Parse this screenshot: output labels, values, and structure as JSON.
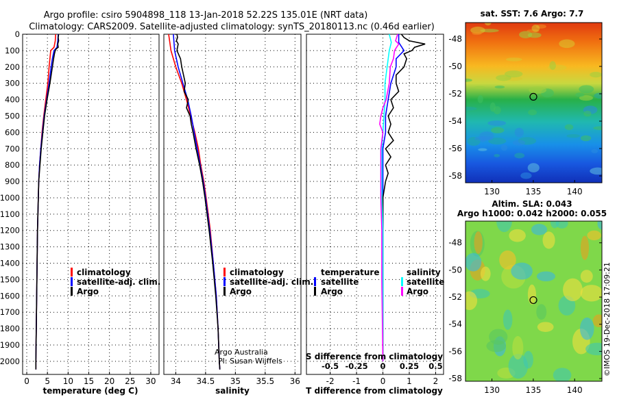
{
  "title_line1": "Argo profile: csiro 5904898_118 13-Jan-2018 52.22S 135.01E (NRT data)",
  "title_line2": "Climatology: CARS2009. Satellite-adjusted climatology: synTS_20180113.nc (0.46d earlier)",
  "colors": {
    "climatology": "#ff0000",
    "satellite": "#0000ff",
    "argo": "#000000",
    "sat_salinity": "#00ffff",
    "argo_salinity": "#ff00ff"
  },
  "chart_data": [
    {
      "type": "line",
      "name": "temperature-profile",
      "xlabel": "temperature (deg C)",
      "xlim": [
        -1,
        32
      ],
      "xticks": [
        0,
        5,
        10,
        15,
        20,
        25,
        30
      ],
      "ylim": [
        0,
        2080
      ],
      "yticks": [
        0,
        100,
        200,
        300,
        400,
        500,
        600,
        700,
        800,
        900,
        1000,
        1100,
        1200,
        1300,
        1400,
        1500,
        1600,
        1700,
        1800,
        1900,
        2000
      ],
      "legend": [
        "climatology",
        "satellite-adj. clim.",
        "Argo"
      ],
      "series": [
        {
          "name": "climatology",
          "color": "#ff0000",
          "depth": [
            0,
            40,
            80,
            100,
            150,
            200,
            300,
            400,
            500,
            600,
            700,
            800,
            900,
            1000,
            1200,
            1400,
            1600,
            1800,
            2000,
            2050
          ],
          "values": [
            7.0,
            6.9,
            6.6,
            5.8,
            5.6,
            5.4,
            5.1,
            4.6,
            4.1,
            3.7,
            3.4,
            3.1,
            2.9,
            2.8,
            2.6,
            2.5,
            2.4,
            2.3,
            2.2,
            2.2
          ]
        },
        {
          "name": "satellite-adj. clim.",
          "color": "#0000ff",
          "depth": [
            0,
            40,
            80,
            100,
            150,
            200,
            300,
            400,
            500,
            600,
            700,
            800,
            900,
            1000,
            1200,
            1400,
            1600,
            1800,
            2000,
            2050
          ],
          "values": [
            7.6,
            7.5,
            7.3,
            6.6,
            6.2,
            5.9,
            5.4,
            4.8,
            4.2,
            3.8,
            3.4,
            3.1,
            2.9,
            2.8,
            2.6,
            2.5,
            2.4,
            2.3,
            2.2,
            2.2
          ]
        },
        {
          "name": "Argo",
          "color": "#000000",
          "depth": [
            0,
            20,
            40,
            60,
            80,
            90,
            100,
            120,
            150,
            200,
            250,
            300,
            400,
            500,
            600,
            700,
            800,
            900,
            1000,
            1200,
            1400,
            1600,
            1800,
            2000,
            2050
          ],
          "values": [
            7.7,
            7.6,
            7.7,
            7.5,
            7.6,
            7.1,
            6.9,
            6.7,
            6.5,
            6.2,
            5.9,
            5.6,
            4.9,
            4.3,
            3.9,
            3.5,
            3.2,
            2.9,
            2.8,
            2.6,
            2.5,
            2.4,
            2.3,
            2.2,
            2.2
          ]
        }
      ]
    },
    {
      "type": "line",
      "name": "salinity-profile",
      "xlabel": "salinity",
      "xlim": [
        33.8,
        36.1
      ],
      "xticks": [
        34,
        34.5,
        35,
        35.5,
        36
      ],
      "xticklabels": [
        "34",
        "34.5",
        "35",
        "35.5",
        "36"
      ],
      "ylim": [
        0,
        2080
      ],
      "legend": [
        "climatology",
        "satellite-adj. clim.",
        "Argo"
      ],
      "series": [
        {
          "name": "climatology",
          "color": "#ff0000",
          "depth": [
            0,
            50,
            100,
            200,
            300,
            400,
            500,
            600,
            700,
            800,
            900,
            1000,
            1200,
            1400,
            1600,
            1800,
            2000,
            2050
          ],
          "values": [
            33.88,
            33.9,
            33.92,
            34.0,
            34.1,
            34.18,
            34.25,
            34.32,
            34.38,
            34.42,
            34.47,
            34.51,
            34.58,
            34.63,
            34.68,
            34.71,
            34.73,
            34.74
          ]
        },
        {
          "name": "satellite-adj. clim.",
          "color": "#0000ff",
          "depth": [
            0,
            50,
            100,
            200,
            300,
            400,
            500,
            600,
            700,
            800,
            900,
            1000,
            1200,
            1400,
            1600,
            1800,
            2000,
            2050
          ],
          "values": [
            33.96,
            33.97,
            33.98,
            34.04,
            34.12,
            34.2,
            34.26,
            34.31,
            34.36,
            34.41,
            34.46,
            34.5,
            34.57,
            34.63,
            34.68,
            34.71,
            34.73,
            34.74
          ]
        },
        {
          "name": "Argo",
          "color": "#000000",
          "depth": [
            0,
            20,
            40,
            60,
            80,
            100,
            150,
            200,
            250,
            300,
            350,
            400,
            450,
            500,
            550,
            600,
            700,
            800,
            900,
            1000,
            1200,
            1400,
            1600,
            1800,
            2000,
            2050
          ],
          "values": [
            34.02,
            34.03,
            34.01,
            34.04,
            34.03,
            34.02,
            34.08,
            34.1,
            34.13,
            34.16,
            34.14,
            34.21,
            34.18,
            34.24,
            34.26,
            34.29,
            34.34,
            34.4,
            34.45,
            34.49,
            34.56,
            34.62,
            34.67,
            34.71,
            34.73,
            34.74
          ]
        }
      ],
      "annotation": [
        "Argo Australia",
        "PI: Susan Wijffels"
      ]
    },
    {
      "type": "line",
      "name": "difference-profile",
      "xlabel": "T difference from climatology",
      "xlabel2": "S difference from climatology",
      "xlim": [
        -2.9,
        2.3
      ],
      "xticks": [
        -2,
        -1,
        0,
        1,
        2
      ],
      "xticks2": [
        -0.5,
        -0.25,
        0,
        0.25,
        0.5
      ],
      "xticklabels2": [
        "-0.5",
        "-0.25",
        "0",
        "0.25",
        "0.5"
      ],
      "ylim": [
        0,
        2080
      ],
      "legend_temperature_title": "temperature",
      "legend_salinity_title": "salinity",
      "legend_temperature": [
        "satellite",
        "Argo"
      ],
      "legend_salinity": [
        "satellite",
        "Argo"
      ],
      "series": [
        {
          "name": "T satellite",
          "color": "#0000ff",
          "depth": [
            0,
            50,
            100,
            150,
            200,
            300,
            400,
            500,
            600,
            700,
            800,
            900,
            1000,
            1200,
            1500,
            2000
          ],
          "values": [
            0.6,
            0.6,
            0.8,
            0.5,
            0.5,
            0.3,
            0.2,
            0.1,
            0.1,
            0.0,
            0.0,
            0.0,
            0.0,
            0.0,
            0.0,
            0.0
          ]
        },
        {
          "name": "T Argo",
          "color": "#000000",
          "depth": [
            0,
            20,
            40,
            60,
            80,
            100,
            120,
            150,
            200,
            250,
            300,
            350,
            400,
            450,
            500,
            550,
            600,
            650,
            700,
            750,
            800,
            850,
            900,
            1000,
            1100,
            1200,
            1500,
            2000
          ],
          "values": [
            0.7,
            0.8,
            1.0,
            1.6,
            1.2,
            1.1,
            0.8,
            0.9,
            0.8,
            0.5,
            0.5,
            0.6,
            0.3,
            0.4,
            0.2,
            0.3,
            0.2,
            0.4,
            0.1,
            0.3,
            0.1,
            0.2,
            0.1,
            0.0,
            0.0,
            0.0,
            0.0,
            0.0
          ]
        },
        {
          "name": "S satellite",
          "color": "#00ffff",
          "depth": [
            0,
            50,
            100,
            200,
            300,
            400,
            500,
            600,
            700,
            800,
            900,
            1000,
            1200,
            1500,
            2000
          ],
          "values": [
            0.06,
            0.08,
            0.06,
            0.04,
            0.02,
            0.02,
            0.01,
            0.0,
            -0.01,
            -0.01,
            -0.01,
            -0.01,
            0.0,
            0.0,
            0.0
          ]
        },
        {
          "name": "S Argo",
          "color": "#ff00ff",
          "depth": [
            0,
            20,
            40,
            60,
            80,
            100,
            150,
            200,
            300,
            400,
            450,
            500,
            550,
            600,
            700,
            800,
            900,
            1000,
            1200,
            1500,
            2000
          ],
          "values": [
            0.14,
            0.13,
            0.12,
            0.15,
            0.13,
            0.11,
            0.1,
            0.07,
            0.06,
            0.03,
            0.0,
            -0.02,
            -0.03,
            0.0,
            -0.02,
            -0.02,
            -0.02,
            -0.02,
            -0.01,
            -0.01,
            0.0
          ]
        }
      ]
    },
    {
      "type": "heatmap",
      "name": "sst-map",
      "title": "sat. SST: 7.6 Argo: 7.7",
      "xticks": [
        130,
        135,
        140
      ],
      "yticks": [
        -48,
        -50,
        -52,
        -54,
        -56,
        -58
      ],
      "float_position": [
        135.01,
        -52.22
      ]
    },
    {
      "type": "heatmap",
      "name": "sla-map",
      "title_line1": "Altim. SLA: 0.043",
      "title_line2": "Argo h1000: 0.042 h2000: 0.055",
      "xticks": [
        130,
        135,
        140
      ],
      "yticks": [
        -48,
        -50,
        -52,
        -54,
        -56,
        -58
      ],
      "float_position": [
        135.01,
        -52.22
      ],
      "credit": "©IMOS 19-Dec-2018 17:09:21"
    }
  ]
}
